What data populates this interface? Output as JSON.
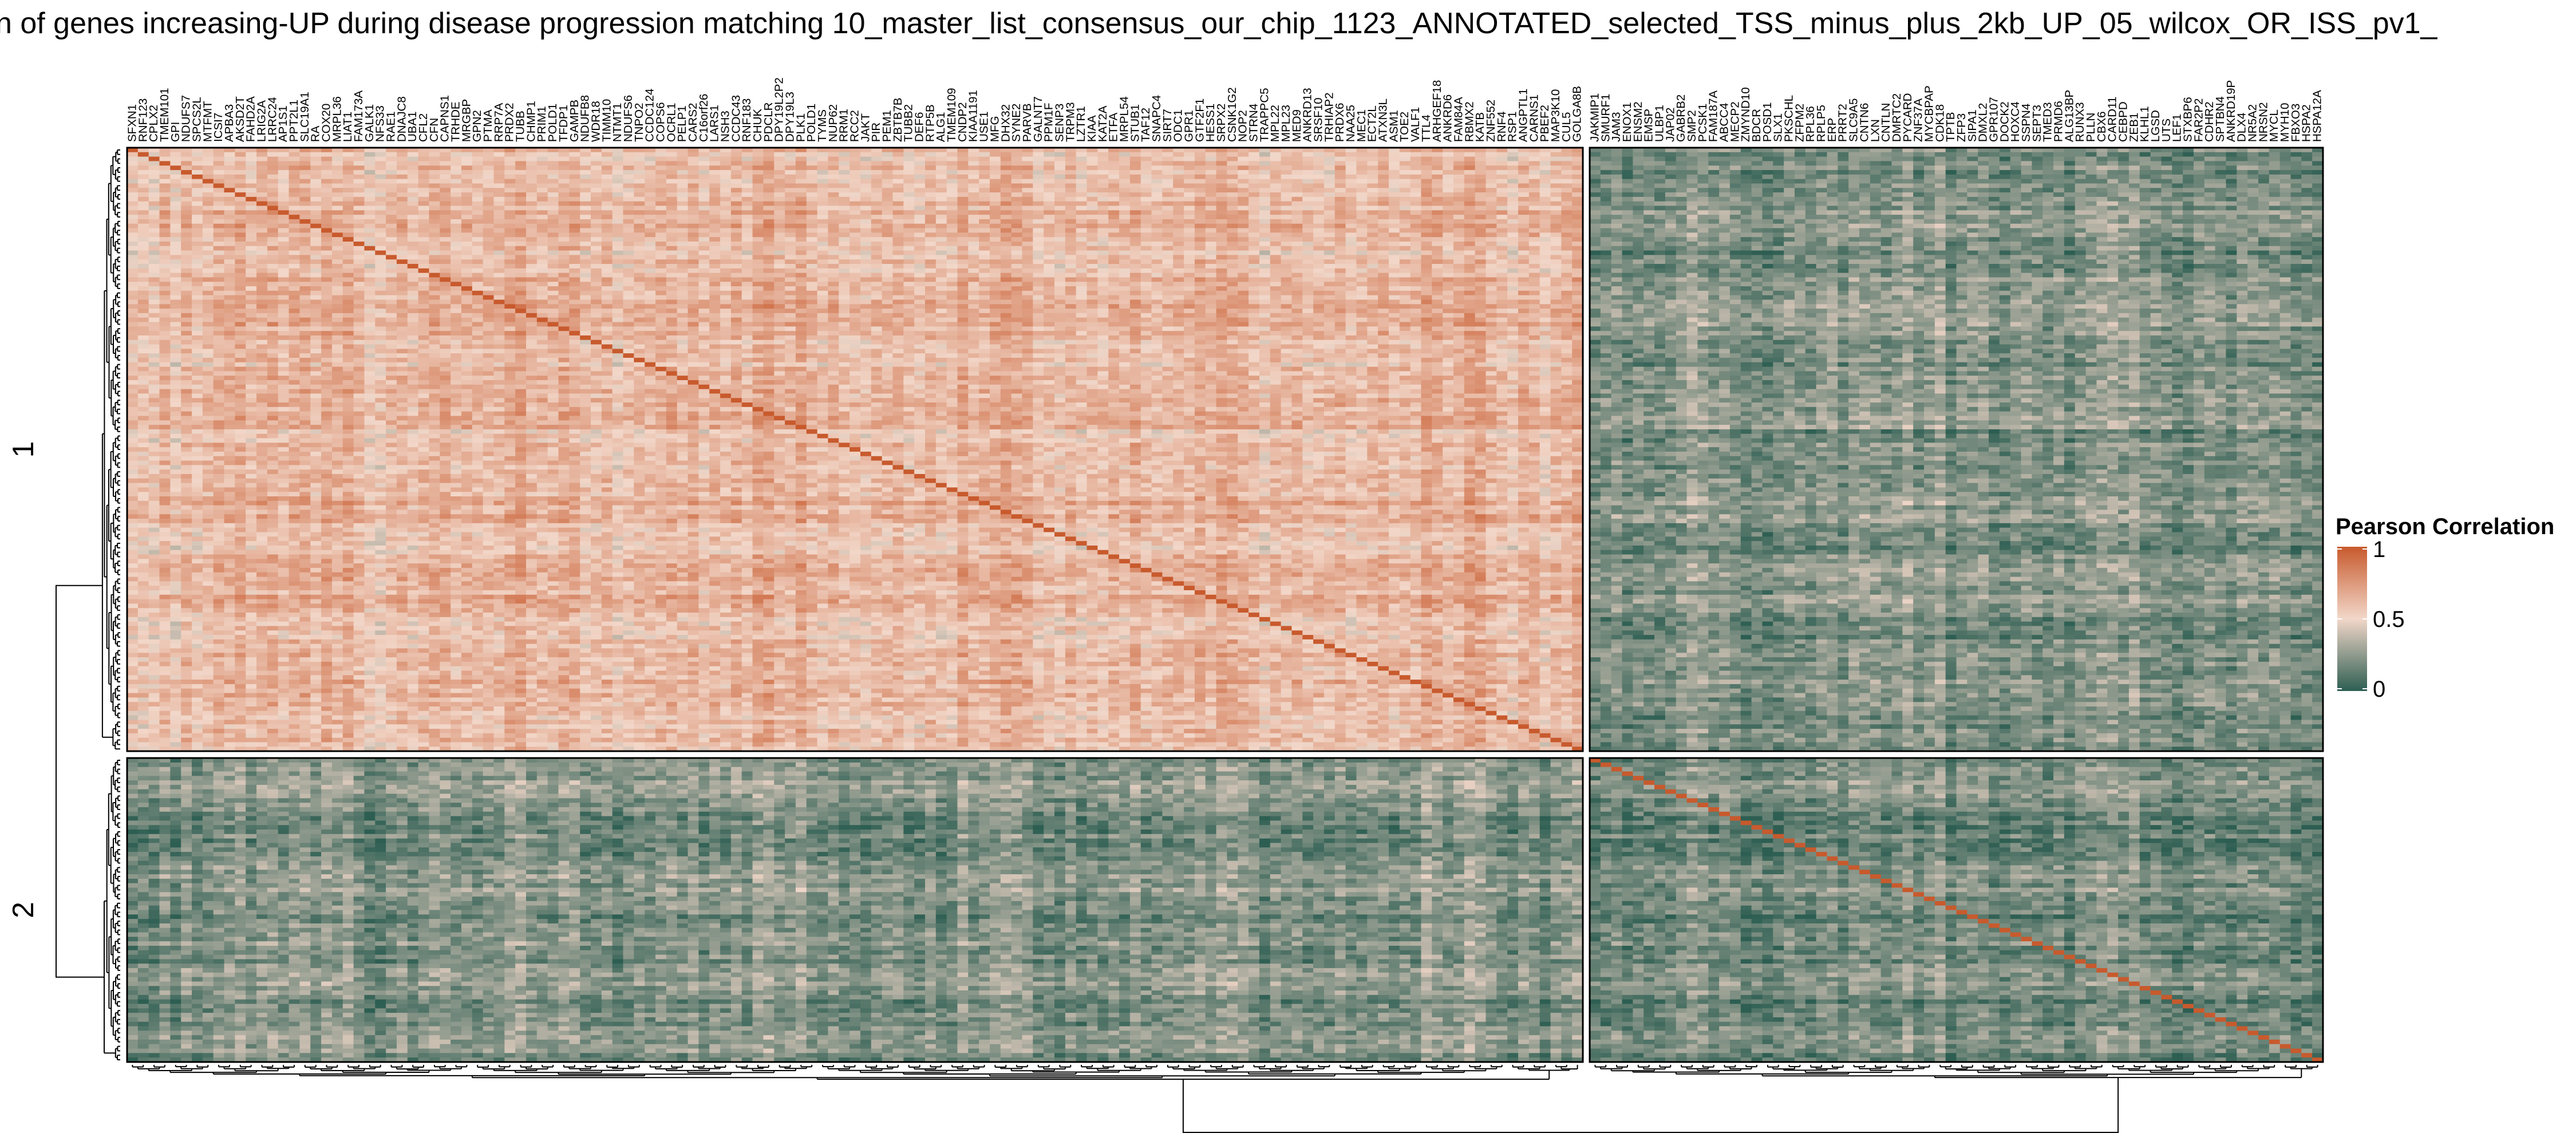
{
  "chart_data": {
    "type": "heatmap",
    "title": "n of genes increasing-UP during disease progression matching 10_master_list_consensus_our_chip_1123_ANNOTATED_selected_TSS_minus_plus_2kb_UP_05_wilcox_OR_ISS_pv1_",
    "row_groups": [
      "1",
      "2"
    ],
    "column_groups": [
      {
        "id": "1",
        "genes": [
          "SFXN1",
          "RNF123",
          "CPLX2",
          "TMEM101",
          "GPI",
          "NDUFS7",
          "SPCS2L",
          "MTFMT",
          "ICSI7",
          "APBA3",
          "AKSD2T",
          "FAHD2A",
          "LRIG2A",
          "LRRC24",
          "AP1S1",
          "PPT2L1",
          "SLC19A1",
          "RA",
          "COX20",
          "MRPL36",
          "LIAT1",
          "FAM173A",
          "GALK1",
          "NFS33",
          "RAE1",
          "DNAJC8",
          "UBA1",
          "CFL2",
          "CFN",
          "CAPNS1",
          "TRHDE",
          "MRGBP",
          "GPN2",
          "PTMA",
          "RRP7A",
          "PRDX2",
          "TUBB",
          "CHMP1",
          "PRIM1",
          "POLD1",
          "TFDP1",
          "GAMPB",
          "NDUFB8",
          "WDR18",
          "TIMM10",
          "NTMT1",
          "NDUFS6",
          "TNPO2",
          "CCDC124",
          "COPS6",
          "OCRL1",
          "PELP1",
          "CARS2",
          "C16orf26",
          "LARS1",
          "NSH3",
          "CCDC43",
          "RNF183",
          "CHUK",
          "PDCLR",
          "DPY19L2P2",
          "DPY19L3",
          "PLK1",
          "POLD1",
          "TYMS",
          "NUP62",
          "RRM1",
          "RCC2",
          "JAKT",
          "PIR",
          "PEM1",
          "ZBTB7B",
          "TUBB2",
          "DEF6",
          "RTP5B",
          "ALG1",
          "TMEM109",
          "CNDP2",
          "KIAA1191",
          "USE1",
          "MFG",
          "DHX32",
          "SYNE2",
          "PARVB",
          "GALNT7",
          "PPM1F",
          "SENP3",
          "TRPM3",
          "LZTR1",
          "KIAA",
          "KAT2A",
          "ETFA",
          "MRPL54",
          "STUB1",
          "TAF12",
          "SNAPC4",
          "SIRT7",
          "ODC1",
          "GPR1",
          "GTF2F1",
          "HESS1",
          "SRPX2",
          "CSNK1G2",
          "NOP2",
          "STRN4",
          "TRAPPC5",
          "MPL22",
          "MPL23",
          "MED9",
          "ANKRD13",
          "SRSF10",
          "TRHIAP2",
          "PRDX6",
          "NAA25",
          "MEC1",
          "ECT2L",
          "ATXN3L",
          "ASM1",
          "TOE2",
          "VALF1",
          "TTL4",
          "ARHGEF18",
          "ANKRD6",
          "FAM84A",
          "RBMX2",
          "KATB",
          "ZNF552",
          "RNF4",
          "RSP1",
          "ANGPTL1",
          "CARNS1",
          "PBEF2",
          "MAP3K10",
          "CUL5",
          "GOLGA8B"
        ]
      },
      {
        "id": "2",
        "genes": [
          "JAKMIP1",
          "SMURF1",
          "JAM3",
          "ENOX1",
          "ENSM2",
          "EMSP",
          "ULBP1",
          "JAP02",
          "GABRB2",
          "SMP2",
          "PCSK1",
          "FAM187A",
          "ABCC4",
          "MECP2",
          "ZMYND10",
          "BDCR",
          "POSD1",
          "SLX1",
          "PKSCHL",
          "ZFPM2",
          "RPL36",
          "RPLP5",
          "ERP",
          "PRRT2",
          "SLC9A5",
          "CNTN6",
          "LXN",
          "CNTLN",
          "DMRTC2",
          "PYCARD",
          "ZNF37A",
          "MYCBPAP",
          "CDK18",
          "TPTB",
          "ZFP3",
          "SIPA1",
          "DMXL2",
          "GPR107",
          "DOCK2",
          "HOXC4",
          "SSPN4",
          "SEPT3",
          "TMED3",
          "PRMD6",
          "ALG13BP",
          "RUNX3",
          "PLLN",
          "CBX6",
          "CARD11",
          "CEBPD",
          "ZEB1",
          "KLHL1",
          "LGSD",
          "UTS",
          "LEF1",
          "STXBP6",
          "FAR2P2",
          "CDHR2",
          "SPTBN4",
          "ANKRD19P",
          "DLX4",
          "NR5A2",
          "NRSN2",
          "MYCL",
          "MYH10",
          "FBXO3",
          "HSPA2",
          "HSPA12A"
        ]
      }
    ],
    "color_scale": {
      "title": "Pearson Correlation",
      "range": [
        0,
        1
      ],
      "ticks": [
        "1",
        "0.5",
        "0"
      ],
      "stops": [
        {
          "value": 0,
          "color": "#2d5e52"
        },
        {
          "value": 0.5,
          "color": "#f2d7c9"
        },
        {
          "value": 1,
          "color": "#c85a2d"
        }
      ]
    },
    "block_mean_correlation": [
      {
        "row_group": "1",
        "column_group": "1",
        "mean": 0.62
      },
      {
        "row_group": "1",
        "column_group": "2",
        "mean": 0.22
      },
      {
        "row_group": "2",
        "column_group": "1",
        "mean": 0.22
      },
      {
        "row_group": "2",
        "column_group": "2",
        "mean": 0.18
      }
    ],
    "diagonal_value": 1
  }
}
